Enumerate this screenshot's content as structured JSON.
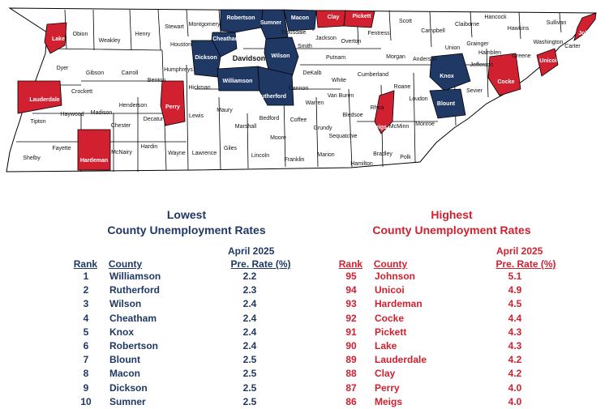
{
  "legend_colors": {
    "lowest": "#1f3864",
    "highest": "#d1202f",
    "other": "#ffffff"
  },
  "map": {
    "counties": [
      {
        "name": "Lake",
        "group": "highest"
      },
      {
        "name": "Obion",
        "group": "other"
      },
      {
        "name": "Weakley",
        "group": "other"
      },
      {
        "name": "Henry",
        "group": "other"
      },
      {
        "name": "Stewart",
        "group": "other"
      },
      {
        "name": "Montgomery",
        "group": "other"
      },
      {
        "name": "Robertson",
        "group": "lowest"
      },
      {
        "name": "Sumner",
        "group": "lowest"
      },
      {
        "name": "Macon",
        "group": "lowest"
      },
      {
        "name": "Clay",
        "group": "highest"
      },
      {
        "name": "Pickett",
        "group": "highest"
      },
      {
        "name": "Scott",
        "group": "other"
      },
      {
        "name": "Hancock",
        "group": "other"
      },
      {
        "name": "Sullivan",
        "group": "other"
      },
      {
        "name": "Johnson",
        "group": "highest"
      },
      {
        "name": "Cheatham",
        "group": "lowest"
      },
      {
        "name": "Trousdale",
        "group": "other"
      },
      {
        "name": "Jackson",
        "group": "other"
      },
      {
        "name": "Overton",
        "group": "other"
      },
      {
        "name": "Fentress",
        "group": "other"
      },
      {
        "name": "Campbell",
        "group": "other"
      },
      {
        "name": "Claiborne",
        "group": "other"
      },
      {
        "name": "Hawkins",
        "group": "other"
      },
      {
        "name": "Washington",
        "group": "other"
      },
      {
        "name": "Carter",
        "group": "other"
      },
      {
        "name": "Unicoi",
        "group": "highest"
      },
      {
        "name": "Dyer",
        "group": "other"
      },
      {
        "name": "Houston",
        "group": "other"
      },
      {
        "name": "Dickson",
        "group": "lowest"
      },
      {
        "name": "Davidson",
        "group": "other"
      },
      {
        "name": "Wilson",
        "group": "lowest"
      },
      {
        "name": "Smith",
        "group": "other"
      },
      {
        "name": "Putnam",
        "group": "other"
      },
      {
        "name": "Morgan",
        "group": "other"
      },
      {
        "name": "Anderson",
        "group": "other"
      },
      {
        "name": "Union",
        "group": "other"
      },
      {
        "name": "Grainger",
        "group": "other"
      },
      {
        "name": "Hamblen",
        "group": "other"
      },
      {
        "name": "Greene",
        "group": "other"
      },
      {
        "name": "Jefferson",
        "group": "other"
      },
      {
        "name": "Gibson",
        "group": "other"
      },
      {
        "name": "Carroll",
        "group": "other"
      },
      {
        "name": "Benton",
        "group": "other"
      },
      {
        "name": "Humphreys",
        "group": "other"
      },
      {
        "name": "Williamson",
        "group": "lowest"
      },
      {
        "name": "Rutherford",
        "group": "lowest"
      },
      {
        "name": "DeKalb",
        "group": "other"
      },
      {
        "name": "White",
        "group": "other"
      },
      {
        "name": "Cumberland",
        "group": "other"
      },
      {
        "name": "Roane",
        "group": "other"
      },
      {
        "name": "Knox",
        "group": "lowest"
      },
      {
        "name": "Cocke",
        "group": "highest"
      },
      {
        "name": "Sevier",
        "group": "other"
      },
      {
        "name": "Lauderdale",
        "group": "highest"
      },
      {
        "name": "Crockett",
        "group": "other"
      },
      {
        "name": "Haywood",
        "group": "other"
      },
      {
        "name": "Madison",
        "group": "other"
      },
      {
        "name": "Henderson",
        "group": "other"
      },
      {
        "name": "Decatur",
        "group": "other"
      },
      {
        "name": "Perry",
        "group": "highest"
      },
      {
        "name": "Hickman",
        "group": "other"
      },
      {
        "name": "Lewis",
        "group": "other"
      },
      {
        "name": "Maury",
        "group": "other"
      },
      {
        "name": "Cannon",
        "group": "other"
      },
      {
        "name": "Warren",
        "group": "other"
      },
      {
        "name": "Van Buren",
        "group": "other"
      },
      {
        "name": "Bledsoe",
        "group": "other"
      },
      {
        "name": "Rhea",
        "group": "other"
      },
      {
        "name": "Meigs",
        "group": "highest"
      },
      {
        "name": "McMinn",
        "group": "other"
      },
      {
        "name": "Loudon",
        "group": "other"
      },
      {
        "name": "Blount",
        "group": "lowest"
      },
      {
        "name": "Monroe",
        "group": "other"
      },
      {
        "name": "Tipton",
        "group": "other"
      },
      {
        "name": "Chester",
        "group": "other"
      },
      {
        "name": "Marshall",
        "group": "other"
      },
      {
        "name": "Bedford",
        "group": "other"
      },
      {
        "name": "Coffee",
        "group": "other"
      },
      {
        "name": "Grundy",
        "group": "other"
      },
      {
        "name": "Sequatchie",
        "group": "other"
      },
      {
        "name": "Shelby",
        "group": "other"
      },
      {
        "name": "Fayette",
        "group": "other"
      },
      {
        "name": "Hardeman",
        "group": "highest"
      },
      {
        "name": "McNairy",
        "group": "other"
      },
      {
        "name": "Hardin",
        "group": "other"
      },
      {
        "name": "Wayne",
        "group": "other"
      },
      {
        "name": "Lawrence",
        "group": "other"
      },
      {
        "name": "Giles",
        "group": "other"
      },
      {
        "name": "Lincoln",
        "group": "other"
      },
      {
        "name": "Moore",
        "group": "other"
      },
      {
        "name": "Franklin",
        "group": "other"
      },
      {
        "name": "Marion",
        "group": "other"
      },
      {
        "name": "Hamilton",
        "group": "other"
      },
      {
        "name": "Bradley",
        "group": "other"
      },
      {
        "name": "Polk",
        "group": "other"
      }
    ]
  },
  "lowest": {
    "title_line1": "Lowest",
    "title_line2": "County Unemployment Rates",
    "period": "April  2025",
    "header_rank": "Rank",
    "header_county": "County",
    "header_rate": "Pre. Rate (%)",
    "rows": [
      {
        "rank": "1",
        "county": "Williamson",
        "rate": "2.2"
      },
      {
        "rank": "2",
        "county": "Rutherford",
        "rate": "2.3"
      },
      {
        "rank": "3",
        "county": "Wilson",
        "rate": "2.4"
      },
      {
        "rank": "4",
        "county": "Cheatham",
        "rate": "2.4"
      },
      {
        "rank": "5",
        "county": "Knox",
        "rate": "2.4"
      },
      {
        "rank": "6",
        "county": "Robertson",
        "rate": "2.4"
      },
      {
        "rank": "7",
        "county": "Blount",
        "rate": "2.5"
      },
      {
        "rank": "8",
        "county": "Macon",
        "rate": "2.5"
      },
      {
        "rank": "9",
        "county": "Dickson",
        "rate": "2.5"
      },
      {
        "rank": "10",
        "county": "Sumner",
        "rate": "2.5"
      }
    ]
  },
  "highest": {
    "title_line1": "Highest",
    "title_line2": "County Unemployment Rates",
    "period": "April  2025",
    "header_rank": "Rank",
    "header_county": "County",
    "header_rate": "Pre. Rate (%)",
    "rows": [
      {
        "rank": "95",
        "county": "Johnson",
        "rate": "5.1"
      },
      {
        "rank": "94",
        "county": "Unicoi",
        "rate": "4.9"
      },
      {
        "rank": "93",
        "county": "Hardeman",
        "rate": "4.5"
      },
      {
        "rank": "92",
        "county": "Cocke",
        "rate": "4.4"
      },
      {
        "rank": "91",
        "county": "Pickett",
        "rate": "4.3"
      },
      {
        "rank": "90",
        "county": "Lake",
        "rate": "4.3"
      },
      {
        "rank": "89",
        "county": "Lauderdale",
        "rate": "4.2"
      },
      {
        "rank": "88",
        "county": "Clay",
        "rate": "4.2"
      },
      {
        "rank": "87",
        "county": "Perry",
        "rate": "4.0"
      },
      {
        "rank": "86",
        "county": "Meigs",
        "rate": "4.0"
      }
    ]
  }
}
